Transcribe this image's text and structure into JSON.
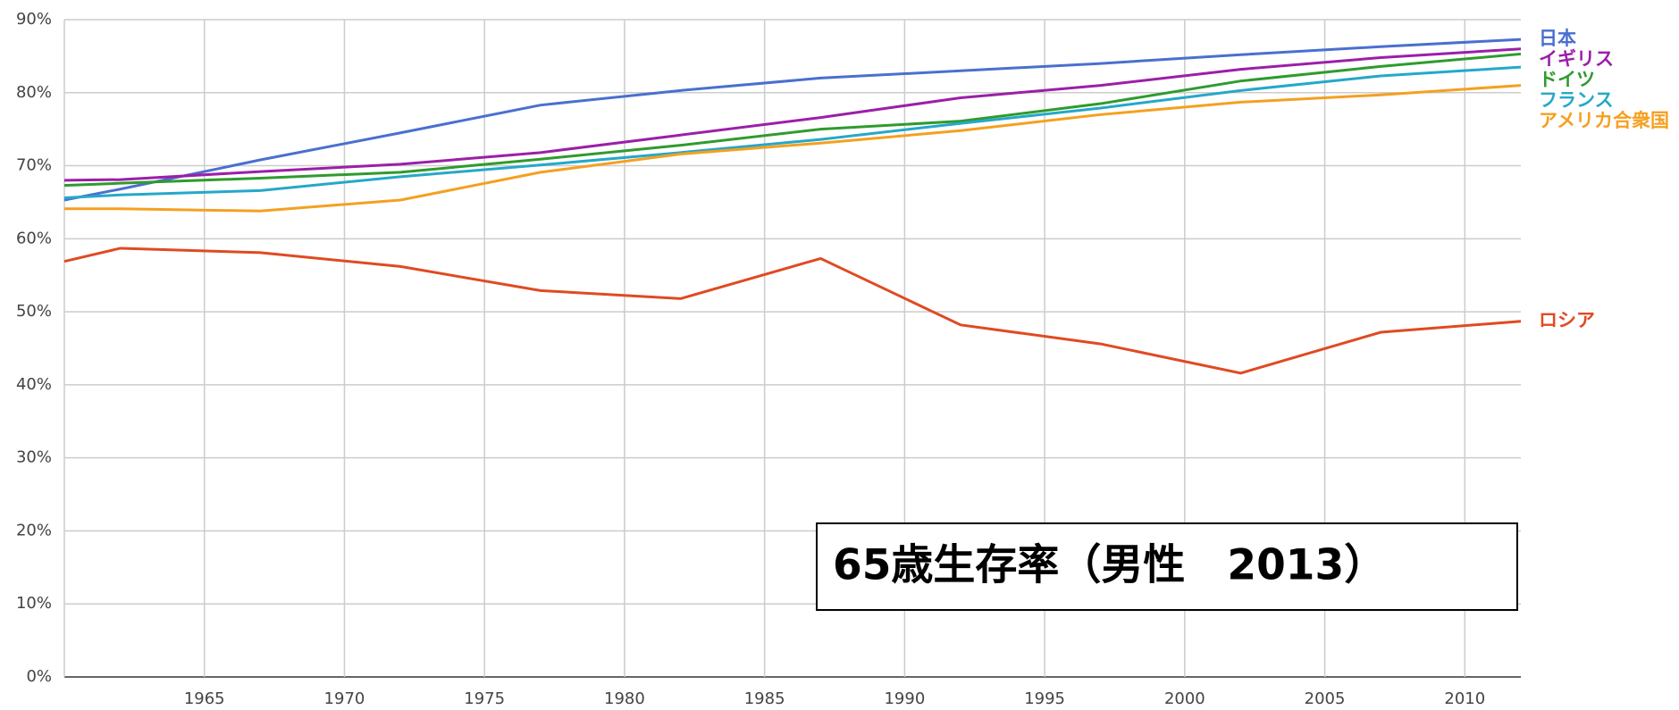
{
  "chart_data": {
    "type": "line",
    "title": "65歳生存率（男性　2013）",
    "x": [
      1960,
      1962,
      1967,
      1972,
      1977,
      1982,
      1987,
      1992,
      1997,
      2002,
      2007,
      2012
    ],
    "xlim": [
      1960,
      2012
    ],
    "xticks": [
      1965,
      1970,
      1975,
      1980,
      1985,
      1990,
      1995,
      2000,
      2005,
      2010
    ],
    "ylim": [
      0,
      90
    ],
    "yticks": [
      {
        "value": 0,
        "label": "0%"
      },
      {
        "value": 10,
        "label": "10%"
      },
      {
        "value": 20,
        "label": "20%"
      },
      {
        "value": 30,
        "label": "30%"
      },
      {
        "value": 40,
        "label": "40%"
      },
      {
        "value": 50,
        "label": "50%"
      },
      {
        "value": 60,
        "label": "60%"
      },
      {
        "value": 70,
        "label": "70%"
      },
      {
        "value": 80,
        "label": "80%"
      },
      {
        "value": 90,
        "label": "90%"
      }
    ],
    "grid": true,
    "series": [
      {
        "name": "日本",
        "color": "#4a6fd0",
        "values": [
          65.3,
          66.8,
          70.8,
          74.5,
          78.3,
          80.3,
          82.0,
          83.0,
          84.0,
          85.2,
          86.3,
          87.3
        ]
      },
      {
        "name": "イギリス",
        "color": "#9b1fa8",
        "values": [
          68.0,
          68.1,
          69.2,
          70.2,
          71.8,
          74.2,
          76.6,
          79.3,
          81.0,
          83.2,
          84.8,
          86.0
        ]
      },
      {
        "name": "ドイツ",
        "color": "#2e9b2e",
        "values": [
          67.3,
          67.6,
          68.3,
          69.1,
          70.9,
          72.8,
          75.0,
          76.1,
          78.5,
          81.6,
          83.6,
          85.3
        ]
      },
      {
        "name": "フランス",
        "color": "#25a8c9",
        "values": [
          65.6,
          66.0,
          66.6,
          68.5,
          70.1,
          71.8,
          73.6,
          75.8,
          77.9,
          80.3,
          82.3,
          83.5
        ]
      },
      {
        "name": "アメリカ合衆国",
        "color": "#f5a020",
        "values": [
          64.1,
          64.1,
          63.8,
          65.3,
          69.1,
          71.6,
          73.1,
          74.8,
          77.0,
          78.7,
          79.7,
          81.0
        ]
      },
      {
        "name": "ロシア",
        "color": "#e04a22",
        "values": [
          56.9,
          58.7,
          58.1,
          56.2,
          52.9,
          51.8,
          57.3,
          48.2,
          45.6,
          41.6,
          47.2,
          48.7
        ]
      }
    ]
  }
}
